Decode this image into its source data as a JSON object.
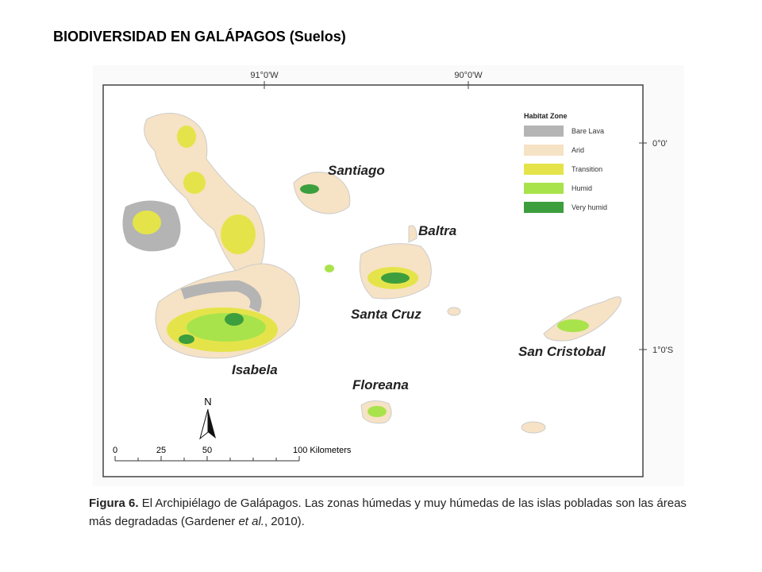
{
  "header": {
    "title": "BIODIVERSIDAD EN GALÁPAGOS (Suelos)"
  },
  "map": {
    "longitude_labels": [
      "91°0'W",
      "90°0'W"
    ],
    "latitude_labels": [
      "0°0'",
      "1°0'S"
    ],
    "legend": {
      "title": "Habitat Zone",
      "items": [
        {
          "label": "Bare Lava",
          "color": "#b4b4b4"
        },
        {
          "label": "Arid",
          "color": "#f6e2c4"
        },
        {
          "label": "Transition",
          "color": "#e4e44a"
        },
        {
          "label": "Humid",
          "color": "#a9e34b"
        },
        {
          "label": "Very humid",
          "color": "#3d9e3d"
        }
      ]
    },
    "islands": [
      "Santiago",
      "Baltra",
      "Santa Cruz",
      "San Cristobal",
      "Isabela",
      "Floreana"
    ],
    "north": "N",
    "scale_labels": [
      "0",
      "25",
      "50",
      "100 Kilometers"
    ]
  },
  "caption": {
    "label": "Figura 6.",
    "text": "El Archipiélago de Galápagos. Las zonas húmedas y muy húmedas de las islas pobladas son las áreas más degradadas (Gardener ",
    "italic": "et al.",
    "end": ", 2010)."
  }
}
